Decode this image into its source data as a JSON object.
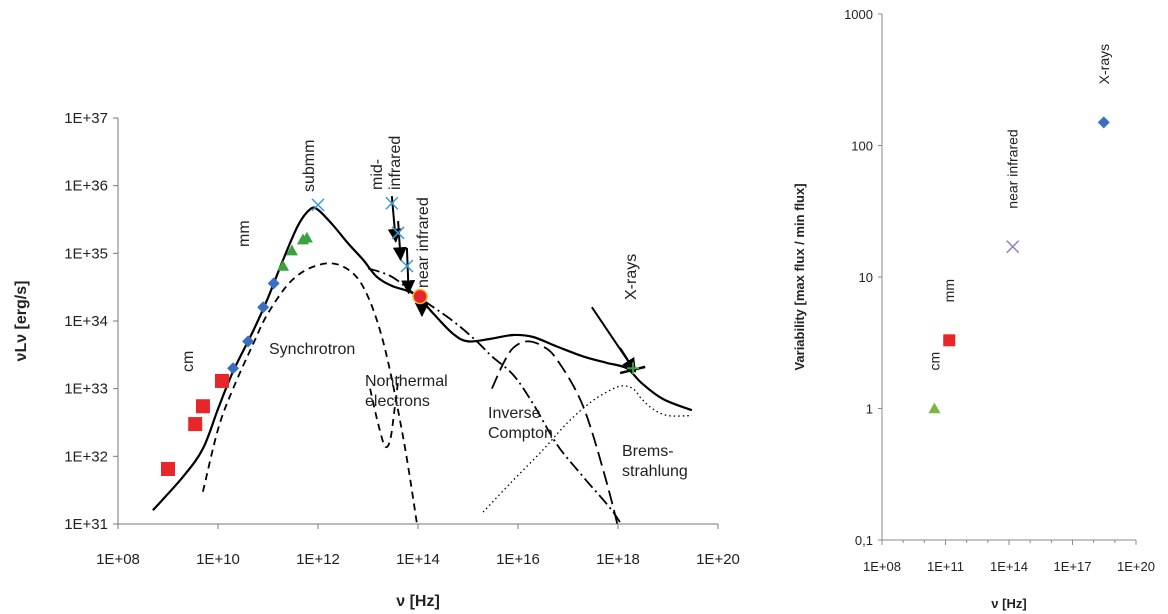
{
  "chart_data": [
    {
      "type": "line",
      "xlabel": "ν [Hz]",
      "ylabel": "νLν [erg/s]",
      "xscale": "log",
      "yscale": "log",
      "xlim": [
        100000000.0,
        1e+20
      ],
      "ylim": [
        1e+31,
        1e+37
      ],
      "x_ticks": [
        "1E+08",
        "1E+10",
        "1E+12",
        "1E+14",
        "1E+16",
        "1E+18",
        "1E+20"
      ],
      "y_ticks": [
        "1E+31",
        "1E+32",
        "1E+33",
        "1E+34",
        "1E+35",
        "1E+36",
        "1E+37"
      ],
      "grid": false,
      "annotations": [
        "cm",
        "mm",
        "submm",
        "mid-\ninfrared",
        "near infrared",
        "X-rays",
        "Synchrotron",
        "Nonthermal\nelectrons",
        "Inverse\nCompton",
        "Brems-\nstrahlung"
      ],
      "series": [
        {
          "name": "",
          "style": "solid",
          "color": "#000000",
          "x": [
            500000000.0,
            2000000000.0,
            5000000000.0,
            10000000000.0,
            20000000000.0,
            50000000000.0,
            100000000000.0,
            200000000000.0,
            400000000000.0,
            700000000000.0,
            1000000000000.0,
            2000000000000.0,
            4000000000000.0,
            8000000000000.0,
            15000000000000.0,
            30000000000000.0,
            60000000000000.0,
            100000000000000.0,
            200000000000000.0,
            500000000000000.0,
            1000000000000000.0,
            3000000000000000.0,
            8000000000000000.0,
            2e+16,
            6e+16,
            2e+17,
            6e+17,
            1.5e+18,
            3e+18,
            8e+18,
            3e+19
          ],
          "y": [
            1.6e+31,
            5e+31,
            1.3e+32,
            5e+32,
            1.8e+33,
            7e+33,
            2.2e+34,
            8e+34,
            2.6e+35,
            4.5e+35,
            4.4e+35,
            2.6e+35,
            1.4e+35,
            8e+34,
            4.5e+34,
            3.3e+34,
            2.8e+34,
            2.3e+34,
            1.3e+34,
            6.5e+33,
            5e+33,
            5.5e+33,
            6.2e+33,
            5.8e+33,
            4.2e+33,
            3e+33,
            2.4e+33,
            2e+33,
            1.2e+33,
            7e+32,
            4.8e+32
          ]
        },
        {
          "name": "Synchrotron",
          "style": "dashed",
          "color": "#000000",
          "x": [
            5000000000.0,
            10000000000.0,
            20000000000.0,
            50000000000.0,
            100000000000.0,
            300000000000.0,
            1000000000000.0,
            3000000000000.0,
            8000000000000.0,
            20000000000000.0,
            50000000000000.0,
            100000000000000.0
          ],
          "y": [
            3e+31,
            2.5e+32,
            1e+33,
            4.5e+33,
            1.3e+34,
            4e+34,
            6.7e+34,
            6.5e+34,
            3.2e+34,
            5e+33,
            2e+32,
            8e+30
          ]
        },
        {
          "name": "Nonthermal electrons",
          "style": "dashed",
          "color": "#000000",
          "x": [
            11000000000000.0,
            16000000000000.0,
            22000000000000.0,
            28000000000000.0,
            34000000000000.0,
            41000000000000.0
          ],
          "y": [
            1e+33,
            3e+32,
            1.4e+32,
            1.8e+32,
            5e+32,
            1.5e+33
          ]
        },
        {
          "name": "",
          "style": "dashdot",
          "color": "#000000",
          "x": [
            10000000000000.0,
            30000000000000.0,
            100000000000000.0,
            500000000000000.0,
            1500000000000000.0,
            3000000000000000.0,
            8000000000000000.0,
            2e+16,
            6e+16,
            2e+17,
            8e+17,
            2e+18
          ],
          "y": [
            6e+34,
            4.5e+34,
            2.3e+34,
            1e+34,
            5e+33,
            3e+33,
            1.6e+33,
            6e+32,
            1.5e+32,
            5e+31,
            1.5e+31,
            5e+30
          ]
        },
        {
          "name": "Inverse Compton",
          "style": "longdash",
          "color": "#000000",
          "x": [
            3000000000000000.0,
            5000000000000000.0,
            8000000000000000.0,
            1.5e+16,
            3e+16,
            6e+16,
            2e+17,
            6e+17,
            1.3e+18
          ],
          "y": [
            1e+33,
            2.3e+33,
            4e+33,
            5e+33,
            4.3e+33,
            2.7e+33,
            5.5e+32,
            4e+31,
            4e+30
          ]
        },
        {
          "name": "Bremsstrahlung",
          "style": "dotted",
          "color": "#000000",
          "x": [
            2000000000000000.0,
            7000000000000000.0,
            3e+16,
            1e+17,
            3e+17,
            7e+17,
            1.2e+18,
            2e+18,
            3e+18,
            5e+18,
            1e+19,
            3e+19
          ],
          "y": [
            1.5e+31,
            4e+31,
            1.2e+32,
            3.2e+32,
            6.5e+32,
            9.5e+32,
            1.1e+33,
            1e+33,
            7e+32,
            5e+32,
            4e+32,
            4e+32
          ]
        }
      ],
      "markers": [
        {
          "group": "cm",
          "shape": "square",
          "color": "#e8262a",
          "x": [
            1000000000.0,
            3500000000.0,
            5000000000.0,
            12000000000.0
          ],
          "y": [
            6.5e+31,
            3e+32,
            5.5e+32,
            1.3e+33
          ]
        },
        {
          "group": "mm-blue",
          "shape": "diamond",
          "color": "#3a6fc0",
          "x": [
            20000000000.0,
            40000000000.0,
            80000000000.0,
            130000000000.0
          ],
          "y": [
            2e+33,
            5e+33,
            1.6e+34,
            3.6e+34
          ]
        },
        {
          "group": "mm-green",
          "shape": "triangle",
          "color": "#3aa33e",
          "x": [
            200000000000.0,
            300000000000.0,
            500000000000.0,
            600000000000.0
          ],
          "y": [
            6.5e+34,
            1.1e+35,
            1.6e+35,
            1.7e+35
          ]
        },
        {
          "group": "near infrared",
          "shape": "circle",
          "color": "#e8262a",
          "x": [
            110000000000000.0
          ],
          "y": [
            2.3e+34
          ]
        },
        {
          "group": "X-rays",
          "shape": "star",
          "color": "#3aa33e",
          "x": [
            2e+18
          ],
          "y": [
            2e+33
          ]
        },
        {
          "group": "ir-cross",
          "shape": "cross",
          "color": "#3a9ad9",
          "x": [
            1000000000000.0,
            30000000000000.0,
            40000000000000.0,
            60000000000000.0
          ],
          "y": [
            5.2e+35,
            5.5e+35,
            2e+35,
            6.5e+34
          ]
        }
      ]
    },
    {
      "type": "scatter",
      "xlabel": "ν [Hz]",
      "ylabel": "Variability [max flux / min flux]",
      "xscale": "log",
      "yscale": "log",
      "xlim": [
        100000000.0,
        1e+20
      ],
      "ylim": [
        0.1,
        1000
      ],
      "x_ticks": [
        "1E+08",
        "1E+11",
        "1E+14",
        "1E+17",
        "1E+20"
      ],
      "y_ticks": [
        "0,1",
        "1",
        "10",
        "100",
        "1000"
      ],
      "grid": false,
      "points": [
        {
          "label": "cm",
          "x": 30000000000.0,
          "y": 1,
          "shape": "triangle",
          "color": "#7bb842"
        },
        {
          "label": "mm",
          "x": 150000000000.0,
          "y": 3.3,
          "shape": "square",
          "color": "#e8262a"
        },
        {
          "label": "near infrared",
          "x": 150000000000000.0,
          "y": 17,
          "shape": "cross",
          "color": "#9a7dc8"
        },
        {
          "label": "X-rays",
          "x": 3e+18,
          "y": 150,
          "shape": "diamond",
          "color": "#3a6fc0"
        }
      ]
    }
  ]
}
